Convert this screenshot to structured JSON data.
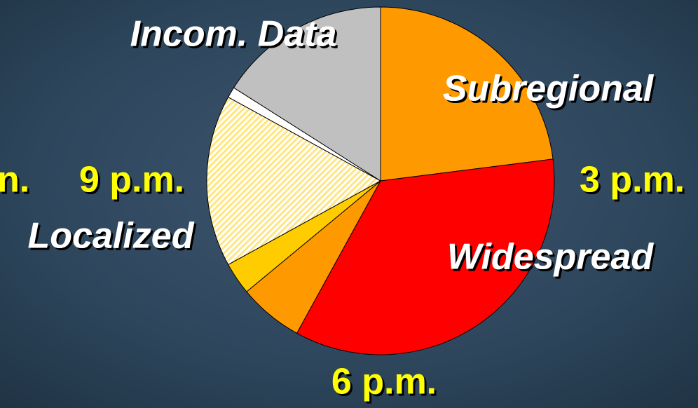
{
  "chart_data": {
    "type": "pie",
    "categories": [
      "Subregional",
      "Widespread",
      null,
      null,
      "Localized",
      null,
      "Incom. Data"
    ],
    "values": [
      23,
      35,
      6,
      3,
      16,
      1,
      16
    ],
    "colors": [
      "#ff9900",
      "#ff0000",
      "#ff9900",
      "#ffcc00",
      "#fff2b3",
      "#ffffff",
      "#c0c0c0"
    ],
    "hatched": [
      4
    ],
    "annotations": [
      "3 p.m.",
      "6 p.m.",
      "9 p.m.",
      "n."
    ]
  }
}
